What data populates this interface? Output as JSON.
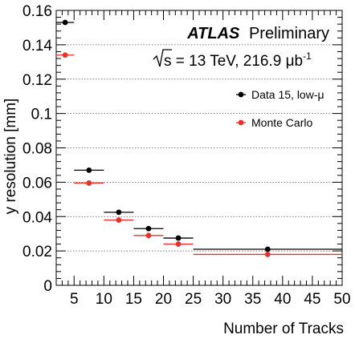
{
  "chart_data": {
    "type": "scatter",
    "title": "",
    "xlabel": "Number of Tracks",
    "ylabel": "y resolution [mm]",
    "xlim": [
      2,
      50
    ],
    "ylim": [
      0,
      0.16
    ],
    "x_ticks": [
      5,
      10,
      15,
      20,
      25,
      30,
      35,
      40,
      45,
      50
    ],
    "y_ticks": [
      0,
      0.02,
      0.04,
      0.06,
      0.08,
      0.1,
      0.12,
      0.14,
      0.16
    ],
    "y_tick_labels": [
      "0",
      "0.02",
      "0.04",
      "0.06",
      "0.08",
      "0.1",
      "0.12",
      "0.14",
      "0.16"
    ],
    "grid": "horizontal dotted",
    "legend_position": "top-right",
    "annotations": {
      "atlas": "ATLAS",
      "preliminary": "Preliminary",
      "sqrt_s": "s",
      "energy_lumi": " = 13 TeV, 216.9 μb",
      "lumi_exponent": "-1"
    },
    "series": [
      {
        "name": "Data 15, low-μ",
        "color": "#000000",
        "points": [
          {
            "x": 3.5,
            "xlow": 2,
            "xhigh": 5,
            "y": 0.153
          },
          {
            "x": 7.5,
            "xlow": 5,
            "xhigh": 10,
            "y": 0.067
          },
          {
            "x": 12.5,
            "xlow": 10,
            "xhigh": 15,
            "y": 0.0425
          },
          {
            "x": 17.5,
            "xlow": 15,
            "xhigh": 20,
            "y": 0.033
          },
          {
            "x": 22.5,
            "xlow": 20,
            "xhigh": 25,
            "y": 0.0275
          },
          {
            "x": 37.5,
            "xlow": 25,
            "xhigh": 50,
            "y": 0.021
          }
        ]
      },
      {
        "name": "Monte Carlo",
        "color": "#e8322b",
        "points": [
          {
            "x": 3.5,
            "xlow": 2,
            "xhigh": 5,
            "y": 0.134
          },
          {
            "x": 7.5,
            "xlow": 5,
            "xhigh": 10,
            "y": 0.0595
          },
          {
            "x": 12.5,
            "xlow": 10,
            "xhigh": 15,
            "y": 0.038
          },
          {
            "x": 17.5,
            "xlow": 15,
            "xhigh": 20,
            "y": 0.029
          },
          {
            "x": 22.5,
            "xlow": 20,
            "xhigh": 25,
            "y": 0.024
          },
          {
            "x": 37.5,
            "xlow": 25,
            "xhigh": 50,
            "y": 0.018
          }
        ]
      }
    ]
  }
}
